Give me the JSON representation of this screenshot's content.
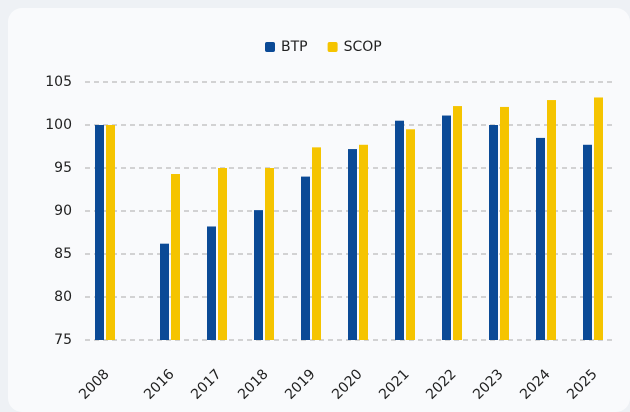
{
  "chart_data": {
    "type": "bar",
    "categories": [
      "2008",
      "2016",
      "2017",
      "2018",
      "2019",
      "2020",
      "2021",
      "2022",
      "2023",
      "2024",
      "2025"
    ],
    "series": [
      {
        "name": "BTP",
        "color": "#0b4a96",
        "values": [
          100,
          86.2,
          88.2,
          90.1,
          94.0,
          97.2,
          100.5,
          101.1,
          100.0,
          98.5,
          97.7
        ]
      },
      {
        "name": "SCOP",
        "color": "#f5c400",
        "values": [
          100,
          94.3,
          95.0,
          95.0,
          97.4,
          97.7,
          99.5,
          102.2,
          102.1,
          102.9,
          103.2
        ]
      }
    ],
    "ylim": [
      75,
      105
    ],
    "yticks": [
      75,
      80,
      85,
      90,
      95,
      100,
      105
    ],
    "grid": true,
    "legend": "top"
  }
}
